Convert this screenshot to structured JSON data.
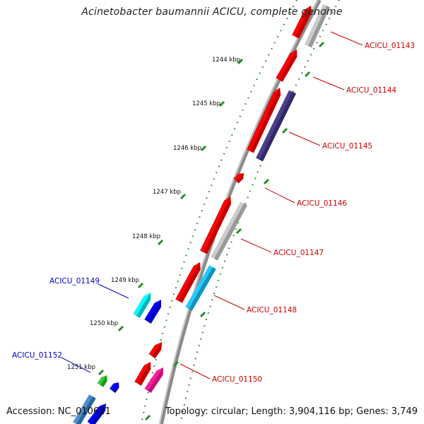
{
  "title": "Acinetobacter baumannii ACICU, complete genome",
  "footer": {
    "accession": "Accession: NC_010611",
    "summary": "Topology: circular; Length: 3,904,116 bp; Genes: 3,749"
  },
  "colors": {
    "backbone": "#808080",
    "tick_dots": "#2a8a2a",
    "label_red": "#cc0000",
    "label_blue": "#0000cc",
    "scale_text": "#111111"
  },
  "scale_labels": [
    {
      "id": "1244",
      "text": "1244 kbp"
    },
    {
      "id": "1245",
      "text": "1245 kbp"
    },
    {
      "id": "1246",
      "text": "1246 kbp"
    },
    {
      "id": "1247",
      "text": "1247 kbp"
    },
    {
      "id": "1248",
      "text": "1248 kbp"
    },
    {
      "id": "1249",
      "text": "1249 kbp"
    },
    {
      "id": "1250",
      "text": "1250 kbp"
    },
    {
      "id": "1251",
      "text": "1251 kbp"
    }
  ],
  "gene_labels": [
    {
      "id": "01143",
      "text": "ACICU_01143",
      "color": "red"
    },
    {
      "id": "01144",
      "text": "ACICU_01144",
      "color": "red"
    },
    {
      "id": "01145",
      "text": "ACICU_01145",
      "color": "red"
    },
    {
      "id": "01146",
      "text": "ACICU_01146",
      "color": "red"
    },
    {
      "id": "01147",
      "text": "ACICU_01147",
      "color": "red"
    },
    {
      "id": "01148",
      "text": "ACICU_01148",
      "color": "red"
    },
    {
      "id": "01149",
      "text": "ACICU_01149",
      "color": "blue"
    },
    {
      "id": "01150",
      "text": "ACICU_01150",
      "color": "red"
    },
    {
      "id": "01152",
      "text": "ACICU_01152",
      "color": "blue"
    }
  ],
  "features": [
    {
      "name": "cds-01143",
      "fill": "#ff0000",
      "shade": "#b30000"
    },
    {
      "name": "gene-01143",
      "fill": "#cccccc",
      "shade": "#8f8f8f"
    },
    {
      "name": "cds-01144",
      "fill": "#ff0000",
      "shade": "#b30000"
    },
    {
      "name": "cds-01145",
      "fill": "#ff0000",
      "shade": "#b30000"
    },
    {
      "name": "gene-01145",
      "fill": "#4a3f8f",
      "shade": "#2e2760"
    },
    {
      "name": "cds-01146",
      "fill": "#ff0000",
      "shade": "#b30000"
    },
    {
      "name": "cds-01147",
      "fill": "#ff0000",
      "shade": "#b30000"
    },
    {
      "name": "gene-01147",
      "fill": "#cccccc",
      "shade": "#8f8f8f"
    },
    {
      "name": "cds-01148",
      "fill": "#ff0000",
      "shade": "#b30000"
    },
    {
      "name": "gene-01148",
      "fill": "#22ccff",
      "shade": "#1288ad"
    },
    {
      "name": "cds-01149",
      "fill": "#00ffff",
      "shade": "#00a8a8"
    },
    {
      "name": "gene-01149",
      "fill": "#0000ff",
      "shade": "#0000a8"
    },
    {
      "name": "cds-01150a",
      "fill": "#ff0000",
      "shade": "#b30000"
    },
    {
      "name": "cds-01150",
      "fill": "#ff0000",
      "shade": "#b30000"
    },
    {
      "name": "gene-01150",
      "fill": "#ff1a9e",
      "shade": "#b3126e"
    },
    {
      "name": "cds-01152",
      "fill": "#33cc33",
      "shade": "#1f8a1f"
    },
    {
      "name": "gene-01152",
      "fill": "#0000ff",
      "shade": "#0000a8"
    },
    {
      "name": "cds-01153",
      "fill": "#4a8fd0",
      "shade": "#2c5e8f"
    },
    {
      "name": "gene-01153",
      "fill": "#0000ff",
      "shade": "#0000a8"
    }
  ]
}
